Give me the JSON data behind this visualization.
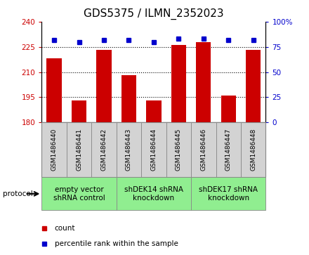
{
  "title": "GDS5375 / ILMN_2352023",
  "samples": [
    "GSM1486440",
    "GSM1486441",
    "GSM1486442",
    "GSM1486443",
    "GSM1486444",
    "GSM1486445",
    "GSM1486446",
    "GSM1486447",
    "GSM1486448"
  ],
  "counts": [
    218,
    193,
    223,
    208,
    193,
    226,
    228,
    196,
    223
  ],
  "percentiles": [
    82,
    80,
    82,
    82,
    80,
    83,
    83,
    82,
    82
  ],
  "ylim_left": [
    180,
    240
  ],
  "ylim_right": [
    0,
    100
  ],
  "yticks_left": [
    180,
    195,
    210,
    225,
    240
  ],
  "yticks_right": [
    0,
    25,
    50,
    75,
    100
  ],
  "bar_color": "#cc0000",
  "marker_color": "#0000cc",
  "bg_color": "#ffffff",
  "sample_box_color": "#d3d3d3",
  "group_box_color": "#90ee90",
  "groups": [
    {
      "label": "empty vector\nshRNA control",
      "start": 0,
      "end": 3
    },
    {
      "label": "shDEK14 shRNA\nknockdown",
      "start": 3,
      "end": 6
    },
    {
      "label": "shDEK17 shRNA\nknockdown",
      "start": 6,
      "end": 9
    }
  ],
  "protocol_label": "protocol",
  "legend_count_label": "count",
  "legend_pct_label": "percentile rank within the sample",
  "title_fontsize": 11,
  "tick_fontsize": 7.5,
  "group_fontsize": 7.5
}
